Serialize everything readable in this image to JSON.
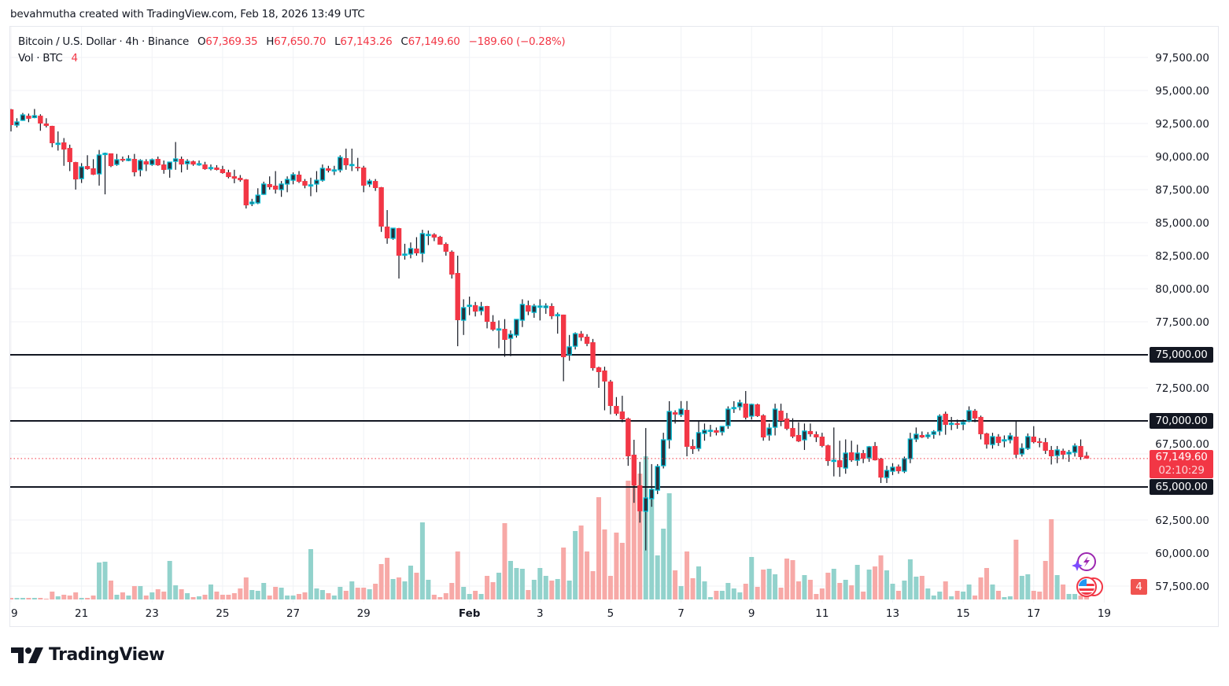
{
  "credit": "bevahmutha created with TradingView.com, Feb 18, 2026 13:49 UTC",
  "legend": {
    "symbol": "Bitcoin / U.S. Dollar · 4h · Binance",
    "o_label": "O",
    "o": "67,369.35",
    "h_label": "H",
    "h": "67,650.70",
    "l_label": "L",
    "l": "67,143.26",
    "c_label": "C",
    "c": "67,149.60",
    "change": "−189.60 (−0.28%)",
    "vol_label": "Vol · BTC",
    "vol_value": "4"
  },
  "price_tag": {
    "price": "67,149.60",
    "countdown": "02:10:29"
  },
  "volume_badge": "4",
  "logo_text": "TradingView",
  "colors": {
    "up_border": "#00bcd4",
    "up_body": "#2a2e39",
    "down": "#f23645",
    "vol_up": "#92d2cc",
    "vol_down": "#f7a9a7",
    "level_line": "#131722",
    "price_line": "#f23645"
  },
  "icons": [
    "lightning-sparkle-icon",
    "us-flag-events-icon",
    "tradingview-logo-icon"
  ],
  "chart_data": {
    "type": "candlestick",
    "symbol": "Bitcoin / U.S. Dollar",
    "interval": "4h",
    "x_start": "2026-01-19T00:00:00Z",
    "ylim": [
      56500,
      99000
    ],
    "grid": true,
    "y_ticks": [
      {
        "value": 97500,
        "label": "97,500.00"
      },
      {
        "value": 95000,
        "label": "95,000.00"
      },
      {
        "value": 92500,
        "label": "92,500.00"
      },
      {
        "value": 90000,
        "label": "90,000.00"
      },
      {
        "value": 87500,
        "label": "87,500.00"
      },
      {
        "value": 85000,
        "label": "85,000.00"
      },
      {
        "value": 82500,
        "label": "82,500.00"
      },
      {
        "value": 80000,
        "label": "80,000.00"
      },
      {
        "value": 77500,
        "label": "77,500.00"
      },
      {
        "value": 72500,
        "label": "72,500.00"
      },
      {
        "value": 67500,
        "label": "67,500.00"
      },
      {
        "value": 62500,
        "label": "62,500.00"
      },
      {
        "value": 60000,
        "label": "60,000.00"
      },
      {
        "value": 57500,
        "label": "57,500.00"
      }
    ],
    "x_ticks": [
      {
        "date": "2026-01-19",
        "label": "19"
      },
      {
        "date": "2026-01-21",
        "label": "21"
      },
      {
        "date": "2026-01-23",
        "label": "23"
      },
      {
        "date": "2026-01-25",
        "label": "25"
      },
      {
        "date": "2026-01-27",
        "label": "27"
      },
      {
        "date": "2026-01-29",
        "label": "29"
      },
      {
        "date": "2026-02-01",
        "label": "Feb",
        "bold": true
      },
      {
        "date": "2026-02-03",
        "label": "3"
      },
      {
        "date": "2026-02-05",
        "label": "5"
      },
      {
        "date": "2026-02-07",
        "label": "7"
      },
      {
        "date": "2026-02-09",
        "label": "9"
      },
      {
        "date": "2026-02-11",
        "label": "11"
      },
      {
        "date": "2026-02-13",
        "label": "13"
      },
      {
        "date": "2026-02-15",
        "label": "15"
      },
      {
        "date": "2026-02-17",
        "label": "17"
      },
      {
        "date": "2026-02-19",
        "label": "19"
      }
    ],
    "levels": [
      {
        "value": 75000,
        "label": "75,000.00"
      },
      {
        "value": 70000,
        "label": "70,000.00"
      },
      {
        "value": 65000,
        "label": "65,000.00"
      }
    ],
    "last_price": 67149.6,
    "columns": [
      "open",
      "high",
      "low",
      "close",
      "volume"
    ],
    "candles": [
      [
        93570,
        93600,
        91900,
        92380,
        2
      ],
      [
        92380,
        92900,
        92200,
        92620,
        2
      ],
      [
        92740,
        93300,
        92700,
        93150,
        2
      ],
      [
        93090,
        93250,
        92600,
        92860,
        2
      ],
      [
        92950,
        93600,
        92900,
        93090,
        2
      ],
      [
        93090,
        93200,
        91950,
        92500,
        2
      ],
      [
        92500,
        92900,
        92200,
        92320,
        1
      ],
      [
        92320,
        92330,
        90700,
        91010,
        10
      ],
      [
        91010,
        91900,
        90450,
        91010,
        4
      ],
      [
        91070,
        91400,
        89300,
        90530,
        6
      ],
      [
        90650,
        90900,
        88900,
        89580,
        5
      ],
      [
        89580,
        89600,
        87500,
        88270,
        9
      ],
      [
        88330,
        89500,
        88000,
        89220,
        2
      ],
      [
        89280,
        90100,
        89000,
        89050,
        2
      ],
      [
        89110,
        89800,
        88600,
        88630,
        5
      ],
      [
        88690,
        90500,
        87800,
        90120,
        47
      ],
      [
        90240,
        90300,
        87140,
        90240,
        48
      ],
      [
        90240,
        90240,
        89200,
        89280,
        24
      ],
      [
        89400,
        90200,
        89300,
        89760,
        6
      ],
      [
        89820,
        90000,
        89600,
        89700,
        9
      ],
      [
        89700,
        90100,
        89650,
        89820,
        5
      ],
      [
        89820,
        90200,
        88500,
        88810,
        17
      ],
      [
        88990,
        89800,
        88500,
        89700,
        17
      ],
      [
        89640,
        89800,
        88900,
        89400,
        5
      ],
      [
        89400,
        89850,
        89300,
        89760,
        9
      ],
      [
        89820,
        90000,
        89300,
        89340,
        13
      ],
      [
        89400,
        89700,
        88700,
        88990,
        10
      ],
      [
        89050,
        89400,
        88400,
        89580,
        49
      ],
      [
        89640,
        91100,
        89000,
        89820,
        18
      ],
      [
        89820,
        90000,
        88800,
        89400,
        13
      ],
      [
        89460,
        89800,
        89000,
        89640,
        8
      ],
      [
        89640,
        89700,
        89300,
        89400,
        3
      ],
      [
        89460,
        89700,
        89300,
        89460,
        4
      ],
      [
        89400,
        89600,
        89000,
        89050,
        6
      ],
      [
        89170,
        89400,
        88950,
        89170,
        19
      ],
      [
        89170,
        89350,
        88950,
        88990,
        10
      ],
      [
        89050,
        89300,
        88700,
        88750,
        6
      ],
      [
        88810,
        89000,
        88350,
        88450,
        6
      ],
      [
        88510,
        89000,
        87980,
        88330,
        8
      ],
      [
        88390,
        88600,
        88100,
        88210,
        14
      ],
      [
        88270,
        88300,
        86070,
        86310,
        28
      ],
      [
        86430,
        86800,
        86250,
        86550,
        12
      ],
      [
        86490,
        87600,
        86400,
        87080,
        11
      ],
      [
        87140,
        88100,
        87100,
        87920,
        21
      ],
      [
        87920,
        88500,
        87500,
        87680,
        5
      ],
      [
        87800,
        88900,
        87200,
        87500,
        16
      ],
      [
        87500,
        88150,
        86950,
        87920,
        15
      ],
      [
        87920,
        88500,
        87300,
        88270,
        5
      ],
      [
        88210,
        88800,
        87900,
        88630,
        5
      ],
      [
        88630,
        88900,
        88000,
        88090,
        7
      ],
      [
        88150,
        88300,
        87600,
        87800,
        9
      ],
      [
        87860,
        88400,
        87000,
        87860,
        64
      ],
      [
        87920,
        88900,
        87300,
        88210,
        14
      ],
      [
        88210,
        89400,
        88100,
        89110,
        12
      ],
      [
        89110,
        89300,
        88800,
        88930,
        8
      ],
      [
        88990,
        89300,
        88600,
        88990,
        5
      ],
      [
        88990,
        90100,
        88800,
        89940,
        16
      ],
      [
        89880,
        90600,
        89000,
        89340,
        11
      ],
      [
        89400,
        90600,
        88900,
        89400,
        23
      ],
      [
        89220,
        89900,
        88900,
        89110,
        15
      ],
      [
        89170,
        89300,
        87300,
        87800,
        15
      ],
      [
        87920,
        88300,
        87700,
        88150,
        13
      ],
      [
        88150,
        88300,
        87400,
        87620,
        20
      ],
      [
        87680,
        87700,
        84300,
        84700,
        45
      ],
      [
        84700,
        85950,
        83400,
        83810,
        53
      ],
      [
        83810,
        84600,
        83700,
        84580,
        26
      ],
      [
        84580,
        84600,
        80770,
        82500,
        28
      ],
      [
        82560,
        83400,
        82200,
        82620,
        23
      ],
      [
        82620,
        83500,
        82300,
        83040,
        43
      ],
      [
        83040,
        83900,
        82500,
        82680,
        34
      ],
      [
        82680,
        84460,
        82000,
        84170,
        98
      ],
      [
        84110,
        84400,
        83300,
        84110,
        25
      ],
      [
        84110,
        84200,
        83600,
        83870,
        6
      ],
      [
        83930,
        84000,
        83330,
        83330,
        3
      ],
      [
        83390,
        83500,
        82500,
        82800,
        8
      ],
      [
        82800,
        82900,
        80770,
        81070,
        21
      ],
      [
        81190,
        82500,
        75650,
        77620,
        61
      ],
      [
        77620,
        79200,
        76500,
        78570,
        16
      ],
      [
        78750,
        79400,
        78000,
        78750,
        7
      ],
      [
        78750,
        79000,
        77900,
        78270,
        11
      ],
      [
        78330,
        79000,
        78000,
        78630,
        7
      ],
      [
        78690,
        78700,
        77000,
        77500,
        30
      ],
      [
        77500,
        78000,
        76800,
        76900,
        22
      ],
      [
        76960,
        77600,
        75500,
        76960,
        34
      ],
      [
        76960,
        77700,
        74850,
        76130,
        97
      ],
      [
        76250,
        76850,
        74900,
        76550,
        49
      ],
      [
        76490,
        77680,
        76300,
        77680,
        40
      ],
      [
        77620,
        79200,
        77100,
        78810,
        39
      ],
      [
        78750,
        79100,
        78000,
        78270,
        12
      ],
      [
        78210,
        78850,
        77800,
        78690,
        25
      ],
      [
        78690,
        79200,
        77600,
        78690,
        40
      ],
      [
        78570,
        78900,
        78100,
        78690,
        30
      ],
      [
        78690,
        78900,
        77700,
        77920,
        24
      ],
      [
        78040,
        78200,
        76600,
        78040,
        26
      ],
      [
        78040,
        78040,
        73000,
        74820,
        66
      ],
      [
        75000,
        76500,
        74550,
        75600,
        24
      ],
      [
        75650,
        76700,
        75400,
        76600,
        87
      ],
      [
        76600,
        76800,
        76050,
        76310,
        94
      ],
      [
        76370,
        76560,
        75650,
        75830,
        61
      ],
      [
        75950,
        76200,
        73800,
        73990,
        36
      ],
      [
        74050,
        74100,
        72500,
        73690,
        130
      ],
      [
        73810,
        74100,
        70800,
        72980,
        89
      ],
      [
        72980,
        73100,
        70500,
        71130,
        30
      ],
      [
        71130,
        71800,
        70400,
        70540,
        85
      ],
      [
        70710,
        71900,
        69900,
        70120,
        72
      ],
      [
        70180,
        70250,
        66600,
        67320,
        151
      ],
      [
        67440,
        68570,
        63800,
        65120,
        146
      ],
      [
        65120,
        66900,
        62300,
        63160,
        160
      ],
      [
        63160,
        69460,
        60200,
        64170,
        182
      ],
      [
        64110,
        66730,
        63500,
        64820,
        133
      ],
      [
        64760,
        66730,
        64460,
        66550,
        56
      ],
      [
        66610,
        69100,
        66400,
        68570,
        90
      ],
      [
        68570,
        71490,
        67900,
        70710,
        135
      ],
      [
        70650,
        70800,
        69800,
        70480,
        37
      ],
      [
        70480,
        71500,
        70300,
        70890,
        17
      ],
      [
        70830,
        71500,
        67320,
        68040,
        61
      ],
      [
        68100,
        68600,
        67500,
        67860,
        27
      ],
      [
        67920,
        70000,
        67700,
        69110,
        42
      ],
      [
        69050,
        69800,
        68500,
        69290,
        23
      ],
      [
        69290,
        69700,
        68800,
        69290,
        3
      ],
      [
        69290,
        69500,
        68900,
        69110,
        11
      ],
      [
        69170,
        69500,
        68900,
        69580,
        11
      ],
      [
        69640,
        71100,
        69400,
        70890,
        21
      ],
      [
        71010,
        71490,
        70600,
        71010,
        14
      ],
      [
        71070,
        71600,
        70800,
        71370,
        9
      ],
      [
        71310,
        72260,
        70100,
        70240,
        20
      ],
      [
        70360,
        71300,
        70100,
        71250,
        54
      ],
      [
        71250,
        71300,
        70300,
        70360,
        16
      ],
      [
        70420,
        70500,
        68500,
        68750,
        38
      ],
      [
        68930,
        69800,
        68500,
        69460,
        39
      ],
      [
        69520,
        71300,
        68900,
        70890,
        32
      ],
      [
        70770,
        71300,
        69600,
        70000,
        15
      ],
      [
        70180,
        70600,
        69300,
        69400,
        52
      ],
      [
        69460,
        70200,
        68700,
        68810,
        50
      ],
      [
        68930,
        69900,
        68400,
        68450,
        23
      ],
      [
        68570,
        69800,
        67800,
        69230,
        31
      ],
      [
        69230,
        69800,
        68800,
        68990,
        25
      ],
      [
        68990,
        69200,
        68400,
        68750,
        7
      ],
      [
        68810,
        69100,
        68000,
        68100,
        14
      ],
      [
        68150,
        68200,
        66600,
        66960,
        34
      ],
      [
        67020,
        69500,
        65800,
        67020,
        39
      ],
      [
        67020,
        68500,
        65770,
        66490,
        21
      ],
      [
        66430,
        68600,
        66000,
        67560,
        25
      ],
      [
        67620,
        68500,
        66900,
        67020,
        18
      ],
      [
        67020,
        68200,
        66600,
        67560,
        44
      ],
      [
        67560,
        67800,
        66800,
        67140,
        10
      ],
      [
        67200,
        68100,
        66900,
        68040,
        38
      ],
      [
        68100,
        68400,
        67000,
        67020,
        42
      ],
      [
        67140,
        67200,
        65300,
        65710,
        56
      ],
      [
        65710,
        66600,
        65300,
        66250,
        37
      ],
      [
        66190,
        66800,
        65900,
        66490,
        20
      ],
      [
        66550,
        66700,
        66000,
        66190,
        11
      ],
      [
        66190,
        67300,
        66050,
        67140,
        24
      ],
      [
        67140,
        69100,
        66800,
        68630,
        51
      ],
      [
        68630,
        69500,
        68400,
        68990,
        29
      ],
      [
        68930,
        69200,
        68700,
        68750,
        30
      ],
      [
        68810,
        69150,
        68650,
        68930,
        14
      ],
      [
        68990,
        69300,
        68650,
        69170,
        5
      ],
      [
        69230,
        70500,
        68900,
        70360,
        10
      ],
      [
        70540,
        70700,
        68950,
        69700,
        23
      ],
      [
        69820,
        70300,
        69300,
        69820,
        4
      ],
      [
        69820,
        70100,
        69400,
        69700,
        11
      ],
      [
        69760,
        70100,
        69300,
        69880,
        10
      ],
      [
        70000,
        71100,
        69900,
        70770,
        19
      ],
      [
        70770,
        70900,
        69900,
        70180,
        5
      ],
      [
        70300,
        70400,
        68600,
        68990,
        28
      ],
      [
        69050,
        69100,
        67900,
        68210,
        40
      ],
      [
        68210,
        69100,
        67900,
        68810,
        19
      ],
      [
        68810,
        69000,
        68100,
        68330,
        11
      ],
      [
        68570,
        68900,
        68000,
        68570,
        3
      ],
      [
        68570,
        69100,
        68300,
        68870,
        4
      ],
      [
        68810,
        70000,
        67200,
        67440,
        76
      ],
      [
        67500,
        68300,
        67300,
        67920,
        30
      ],
      [
        67920,
        69050,
        67800,
        68810,
        32
      ],
      [
        68810,
        69600,
        68300,
        68390,
        11
      ],
      [
        68450,
        68700,
        68000,
        68330,
        10
      ],
      [
        68390,
        68700,
        67500,
        67740,
        49
      ],
      [
        67800,
        68100,
        66700,
        67320,
        102
      ],
      [
        67380,
        68100,
        66800,
        67800,
        31
      ],
      [
        67740,
        67900,
        67100,
        67440,
        19
      ],
      [
        67500,
        67800,
        66900,
        67620,
        7
      ],
      [
        67620,
        68300,
        67300,
        68100,
        7
      ],
      [
        68100,
        68600,
        67050,
        67260,
        5
      ],
      [
        67369.35,
        67650.7,
        67143.26,
        67149.6,
        4
      ]
    ]
  }
}
